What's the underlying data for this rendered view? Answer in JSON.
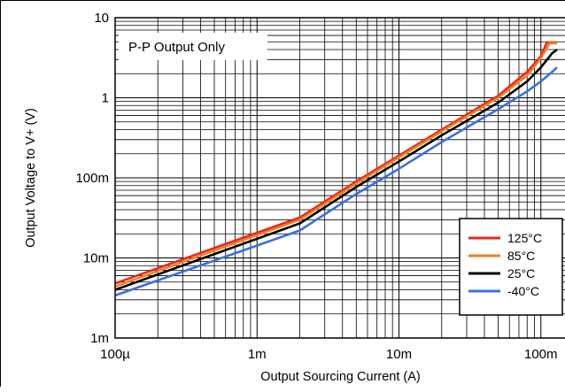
{
  "chart_data": {
    "type": "line",
    "xlabel": "Output Sourcing Current (A)",
    "ylabel": "Output Voltage to V+ (V)",
    "xscale": "log",
    "yscale": "log",
    "xlim": [
      0.0001,
      0.15
    ],
    "ylim": [
      0.001,
      10
    ],
    "grid": true,
    "x_ticks": [
      {
        "value": 0.0001,
        "label": "100µ"
      },
      {
        "value": 0.001,
        "label": "1m"
      },
      {
        "value": 0.01,
        "label": "10m"
      },
      {
        "value": 0.1,
        "label": "100m"
      }
    ],
    "y_ticks": [
      {
        "value": 0.001,
        "label": "1m"
      },
      {
        "value": 0.01,
        "label": "10m"
      },
      {
        "value": 0.1,
        "label": "100m"
      },
      {
        "value": 1,
        "label": "1"
      },
      {
        "value": 10,
        "label": "10"
      }
    ],
    "annotation": "P-P Output Only",
    "legend_position": "bottom-right",
    "series": [
      {
        "name": "125°C",
        "color": "#e8261e",
        "x": [
          0.0001,
          0.002,
          0.005,
          0.01,
          0.02,
          0.05,
          0.08,
          0.1,
          0.11,
          0.115,
          0.12,
          0.13
        ],
        "y": [
          0.0048,
          0.032,
          0.09,
          0.19,
          0.4,
          1.06,
          2.1,
          3.3,
          4.9,
          4.9,
          4.9,
          4.9
        ]
      },
      {
        "name": "85°C",
        "color": "#f07f1f",
        "x": [
          0.0001,
          0.002,
          0.005,
          0.01,
          0.02,
          0.05,
          0.08,
          0.1,
          0.115,
          0.12,
          0.13
        ],
        "y": [
          0.0044,
          0.03,
          0.085,
          0.18,
          0.38,
          1.0,
          1.9,
          3.1,
          4.8,
          4.8,
          4.8
        ]
      },
      {
        "name": "25°C",
        "color": "#000000",
        "x": [
          0.0001,
          0.002,
          0.005,
          0.01,
          0.02,
          0.05,
          0.08,
          0.1,
          0.12,
          0.13
        ],
        "y": [
          0.004,
          0.027,
          0.077,
          0.16,
          0.34,
          0.87,
          1.6,
          2.4,
          3.6,
          4.0
        ]
      },
      {
        "name": "-40°C",
        "color": "#3b6fe0",
        "x": [
          0.0001,
          0.002,
          0.005,
          0.01,
          0.02,
          0.05,
          0.08,
          0.1,
          0.12,
          0.13
        ],
        "y": [
          0.0034,
          0.022,
          0.063,
          0.13,
          0.28,
          0.72,
          1.2,
          1.6,
          2.1,
          2.4
        ]
      }
    ]
  }
}
